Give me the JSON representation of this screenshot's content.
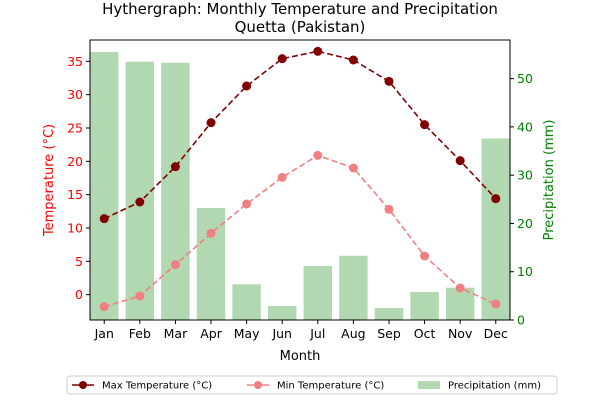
{
  "chart_data": {
    "type": "bar+line",
    "title_line1": "Hythergraph: Monthly Temperature and Precipitation",
    "title_line2": "Quetta (Pakistan)",
    "xlabel": "Month",
    "ylabel_left": "Temperature (°C)",
    "ylabel_right": "Precipitation (mm)",
    "categories": [
      "Jan",
      "Feb",
      "Mar",
      "Apr",
      "May",
      "Jun",
      "Jul",
      "Aug",
      "Sep",
      "Oct",
      "Nov",
      "Dec"
    ],
    "ylim_left": [
      -3.8,
      38.2
    ],
    "ylim_right": [
      0,
      58
    ],
    "yticks_left": [
      0,
      5,
      10,
      15,
      20,
      25,
      30,
      35
    ],
    "yticks_right": [
      0,
      10,
      20,
      30,
      40,
      50
    ],
    "colors": {
      "max": "#800000",
      "min": "#f08080",
      "precip": "#b2d8b2",
      "left_axis": "#ff0000",
      "right_axis": "#008000"
    },
    "series": [
      {
        "name": "Max Temperature (°C)",
        "axis": "left",
        "kind": "line",
        "style": "dashed",
        "color": "#800000",
        "values": [
          11.4,
          13.9,
          19.2,
          25.8,
          31.3,
          35.4,
          36.5,
          35.2,
          32.0,
          25.5,
          20.1,
          14.4
        ]
      },
      {
        "name": "Min Temperature (°C)",
        "axis": "left",
        "kind": "line",
        "style": "dashed",
        "color": "#f08080",
        "values": [
          -1.8,
          -0.2,
          4.5,
          9.2,
          13.6,
          17.6,
          20.9,
          19.0,
          12.8,
          5.8,
          1.0,
          -1.4
        ]
      },
      {
        "name": "Precipitation (mm)",
        "axis": "right",
        "kind": "bar",
        "color": "#b2d8b2",
        "values": [
          55.5,
          53.5,
          53.3,
          23.2,
          7.4,
          2.9,
          11.2,
          13.3,
          2.5,
          5.8,
          6.7,
          37.6
        ]
      }
    ],
    "legend_position": "bottom-center",
    "grid": false
  }
}
